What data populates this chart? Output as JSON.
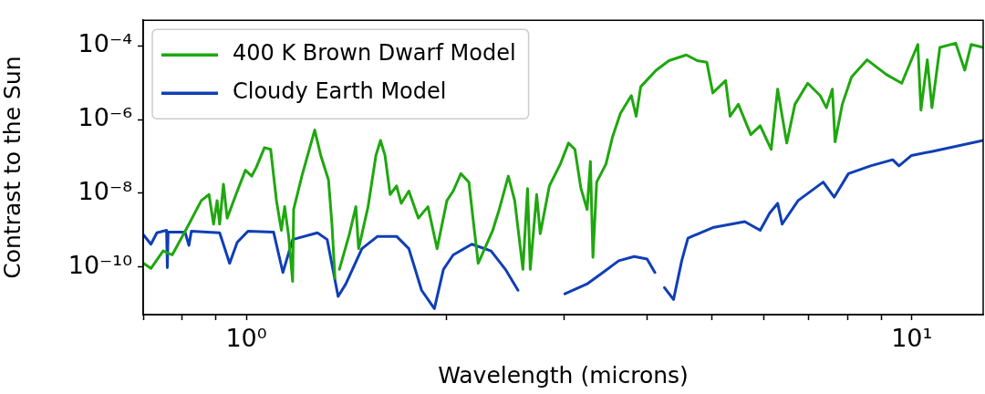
{
  "chart_data": {
    "type": "line",
    "xlabel": "Wavelength (microns)",
    "ylabel": "Contrast to the Sun",
    "log": "xy",
    "grid": false,
    "legend": "top left",
    "xlim": [
      0.7,
      12.8
    ],
    "ylim": [
      5e-12,
      0.0005
    ],
    "xticks": [
      {
        "value": 0.7,
        "label": null
      },
      {
        "value": 0.8,
        "label": null
      },
      {
        "value": 0.9,
        "label": null
      },
      {
        "value": 1,
        "label": "10⁰"
      },
      {
        "value": 2,
        "label": null
      },
      {
        "value": 3,
        "label": null
      },
      {
        "value": 4,
        "label": null
      },
      {
        "value": 5,
        "label": null
      },
      {
        "value": 6,
        "label": null
      },
      {
        "value": 7,
        "label": null
      },
      {
        "value": 8,
        "label": null
      },
      {
        "value": 9,
        "label": null
      },
      {
        "value": 10,
        "label": "10¹"
      }
    ],
    "yticks": [
      {
        "value": 1e-10,
        "label": "10⁻¹⁰"
      },
      {
        "value": 1e-08,
        "label": "10⁻⁸"
      },
      {
        "value": 1e-06,
        "label": "10⁻⁶"
      },
      {
        "value": 0.0001,
        "label": "10⁻⁴"
      }
    ],
    "series": [
      {
        "name": "400 K Brown Dwarf Model",
        "color": "#1fa70f",
        "x": [
          0.701,
          0.719,
          0.75,
          0.774,
          0.82,
          0.856,
          0.879,
          0.893,
          0.904,
          0.912,
          0.924,
          0.936,
          0.965,
          0.997,
          1.019,
          1.035,
          1.065,
          1.088,
          1.11,
          1.129,
          1.142,
          1.158,
          1.174,
          1.178,
          1.212,
          1.267,
          1.294,
          1.329,
          1.345,
          1.359,
          1.367,
          1.38,
          1.429,
          1.461,
          1.475,
          1.524,
          1.566,
          1.591,
          1.616,
          1.645,
          1.682,
          1.709,
          1.755,
          1.814,
          1.875,
          1.935,
          2.002,
          2.046,
          2.101,
          2.16,
          2.196,
          2.231,
          2.346,
          2.399,
          2.476,
          2.531,
          2.604,
          2.646,
          2.671,
          2.731,
          2.765,
          2.854,
          2.964,
          3.049,
          3.117,
          3.183,
          3.252,
          3.289,
          3.318,
          3.361,
          3.471,
          3.549,
          3.648,
          3.789,
          3.853,
          3.914,
          4.129,
          4.316,
          4.583,
          4.76,
          4.92,
          5.023,
          5.25,
          5.333,
          5.487,
          5.729,
          5.918,
          6.148,
          6.286,
          6.487,
          6.674,
          6.975,
          7.282,
          7.442,
          7.596,
          7.668,
          7.862,
          8.116,
          8.568,
          9.154,
          9.658,
          10.21,
          10.32,
          10.55,
          10.72,
          11.02,
          11.64,
          12.01,
          12.28,
          12.8
        ],
        "values": [
          1.24e-10,
          9e-11,
          2.7e-10,
          2.1e-10,
          1.44e-09,
          6.3e-09,
          9.2e-09,
          1.44e-09,
          6.3e-09,
          1.44e-09,
          1.76e-08,
          2.1e-09,
          9.2e-09,
          4.2e-08,
          2.9e-08,
          5e-08,
          1.73e-07,
          1.55e-07,
          6.3e-09,
          9.8e-10,
          4.3e-09,
          6.7e-10,
          4e-11,
          3.6e-09,
          2.9e-08,
          5.2e-07,
          1.06e-07,
          2.3e-08,
          1.44e-09,
          4.9e-11,
          null,
          8.5e-11,
          7.9e-10,
          4.3e-09,
          3.1e-10,
          4.3e-09,
          1.06e-07,
          2.7e-07,
          1.06e-07,
          9.2e-09,
          1.58e-08,
          5.3e-09,
          1.14e-08,
          2.1e-09,
          4.3e-09,
          3.1e-10,
          6.3e-09,
          1.14e-08,
          3.4e-08,
          2e-08,
          1.44e-09,
          1.24e-10,
          9.8e-10,
          3.6e-09,
          2.9e-08,
          6.3e-09,
          8.5e-11,
          1.34e-08,
          8.5e-11,
          9.2e-09,
          7.9e-10,
          1.58e-08,
          6.2e-08,
          2.3e-07,
          1.55e-07,
          1.34e-08,
          3.6e-09,
          7.3e-08,
          1.8e-10,
          2e-08,
          6.2e-08,
          3.3e-07,
          1.45e-06,
          4.5e-06,
          1.23e-06,
          7.8e-06,
          2.2e-05,
          4e-05,
          5.7e-05,
          4e-05,
          3.6e-05,
          5.3e-06,
          1.15e-05,
          1.23e-06,
          2.6e-06,
          3.9e-07,
          6.8e-07,
          1.55e-07,
          6.7e-06,
          2.3e-07,
          2.6e-06,
          9.7e-06,
          4.5e-06,
          2.1e-06,
          6.7e-06,
          2.5e-07,
          2.6e-06,
          1.43e-05,
          4.2e-05,
          1.68e-05,
          9.7e-06,
          0.00011,
          1.8e-06,
          4.2e-05,
          2.1e-06,
          9.1e-05,
          0.000119,
          2.2e-05,
          0.00011,
          9.1e-05
        ]
      },
      {
        "name": "Cloudy Earth Model",
        "color": "#0f3fb6",
        "x": [
          0.701,
          0.719,
          0.734,
          0.759,
          0.761,
          0.763,
          0.809,
          0.82,
          0.827,
          0.912,
          0.944,
          0.969,
          1.006,
          1.099,
          1.135,
          1.174,
          1.279,
          1.323,
          1.374,
          1.411,
          1.492,
          1.575,
          1.682,
          1.755,
          1.834,
          1.917,
          1.978,
          2.046,
          2.182,
          2.332,
          2.451,
          2.56,
          2.564,
          2.58,
          2.886,
          3.011,
          3.249,
          3.435,
          3.628,
          3.828,
          4.001,
          4.111,
          4.179,
          4.19,
          4.202,
          4.249,
          4.385,
          4.511,
          4.609,
          5.023,
          5.61,
          5.918,
          6.117,
          6.286,
          6.385,
          6.748,
          7.36,
          7.644,
          8.031,
          8.67,
          9.358,
          9.567,
          9.99,
          10.78,
          12.8
        ],
        "values": [
          7.3e-10,
          4.1e-10,
          8.4e-10,
          9.8e-10,
          9.5e-11,
          8.8e-10,
          8.8e-10,
          3.8e-10,
          9.3e-10,
          8.4e-10,
          1.24e-10,
          4.6e-10,
          9.3e-10,
          8.8e-10,
          7e-11,
          5.5e-10,
          8.4e-10,
          5.5e-10,
          1.57e-11,
          3.4e-11,
          3.1e-10,
          6.7e-10,
          6.7e-10,
          3.1e-10,
          2.3e-11,
          7.3e-12,
          8.5e-11,
          2.1e-10,
          4.1e-10,
          2.7e-10,
          8.5e-11,
          2.3e-11,
          null,
          null,
          null,
          1.85e-11,
          3.4e-11,
          7e-11,
          1.46e-10,
          1.9e-10,
          1.63e-10,
          7e-11,
          null,
          null,
          null,
          2.7e-11,
          1.29e-11,
          1.46e-10,
          6e-10,
          1.16e-09,
          1.69e-09,
          9.8e-10,
          2.9e-09,
          5.3e-09,
          1.44e-09,
          6.3e-09,
          2e-08,
          7.8e-09,
          3.4e-08,
          5.5e-08,
          8.1e-08,
          5.5e-08,
          1.06e-07,
          1.39e-07,
          2.7e-07
        ]
      }
    ]
  }
}
